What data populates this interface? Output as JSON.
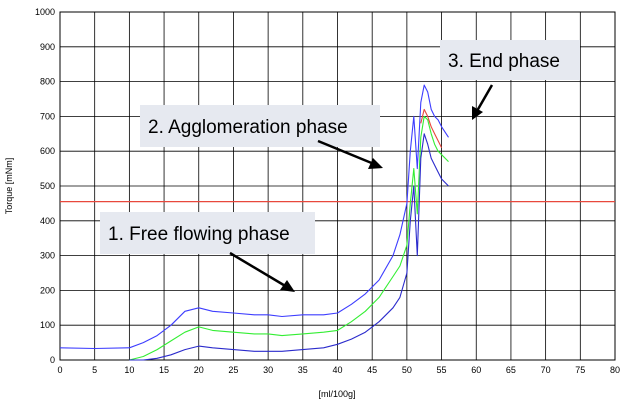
{
  "chart_data": {
    "type": "line",
    "title": "",
    "xlabel": "[ml/100g]",
    "ylabel": "Torque [mNm]",
    "xlim": [
      0,
      80
    ],
    "ylim": [
      0,
      1000
    ],
    "x_ticks": [
      0,
      5,
      10,
      15,
      20,
      25,
      30,
      35,
      40,
      45,
      50,
      55,
      60,
      65,
      70,
      75,
      80
    ],
    "y_ticks": [
      0,
      100,
      200,
      300,
      400,
      500,
      600,
      700,
      800,
      900,
      1000
    ],
    "grid": true,
    "reference_line": {
      "y": 455,
      "color": "#e8483c"
    },
    "series": [
      {
        "color": "#3d3dff",
        "x": [
          0,
          5,
          10,
          12,
          14,
          16,
          18,
          20,
          22,
          25,
          28,
          30,
          32,
          35,
          38,
          40,
          42,
          44,
          46,
          48,
          49,
          50,
          50.5,
          51,
          51.5,
          52,
          52.5,
          53,
          53.5,
          54,
          54.5,
          55,
          56
        ],
        "y": [
          35,
          33,
          35,
          50,
          70,
          100,
          140,
          150,
          140,
          135,
          130,
          130,
          125,
          130,
          130,
          135,
          160,
          190,
          230,
          300,
          360,
          450,
          600,
          700,
          550,
          740,
          790,
          770,
          720,
          700,
          690,
          670,
          640
        ]
      },
      {
        "color": "#33ee33",
        "x": [
          10,
          12,
          14,
          16,
          18,
          20,
          22,
          25,
          28,
          30,
          32,
          35,
          38,
          40,
          42,
          44,
          46,
          48,
          49,
          50,
          50.5,
          51,
          51.5,
          52,
          52.5,
          53,
          53.5,
          54,
          54.5,
          55,
          56
        ],
        "y": [
          0,
          10,
          30,
          55,
          80,
          95,
          85,
          80,
          75,
          75,
          70,
          75,
          80,
          85,
          110,
          140,
          180,
          240,
          270,
          330,
          450,
          550,
          420,
          640,
          700,
          690,
          650,
          620,
          600,
          590,
          570
        ]
      },
      {
        "color": "#2b2bcc",
        "x": [
          10,
          12,
          14,
          16,
          18,
          20,
          22,
          25,
          28,
          30,
          32,
          35,
          38,
          40,
          42,
          44,
          46,
          48,
          49,
          50,
          50.5,
          51,
          51.5,
          52,
          52.5,
          53,
          53.5,
          54,
          54.5,
          55,
          56
        ],
        "y": [
          0,
          0,
          5,
          15,
          30,
          40,
          35,
          30,
          25,
          25,
          25,
          30,
          35,
          45,
          60,
          80,
          110,
          150,
          180,
          250,
          400,
          500,
          300,
          580,
          650,
          620,
          580,
          560,
          540,
          520,
          500
        ]
      },
      {
        "color": "#e8483c",
        "x": [
          52,
          52.5,
          53,
          53.5,
          54,
          54.5,
          55
        ],
        "y": [
          680,
          720,
          700,
          670,
          650,
          630,
          610
        ]
      }
    ],
    "annotations": [
      {
        "text": "1. Free flowing phase",
        "arrow_to": [
          34,
          200
        ]
      },
      {
        "text": "2. Agglomeration phase",
        "arrow_to": [
          46.5,
          545
        ]
      },
      {
        "text": "3. End phase",
        "arrow_to": [
          59,
          690
        ]
      }
    ]
  }
}
